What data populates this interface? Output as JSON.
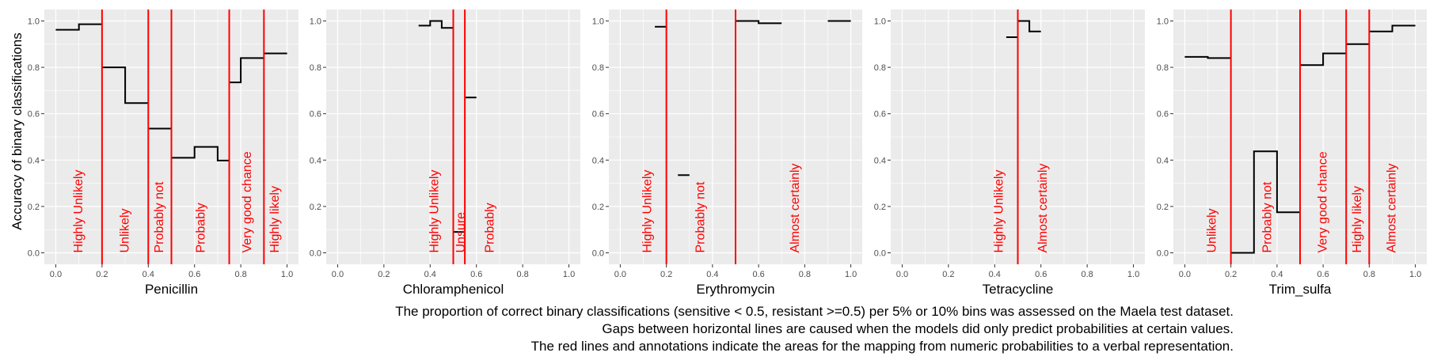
{
  "figure": {
    "ylabel": "Accuracy of binary classifications",
    "caption": [
      "The proportion of correct binary classifications (sensitive < 0.5, resistant >=0.5) per 5% or 10% bins was assessed on the Maela test dataset.",
      "Gaps between horizontal lines are caused when the models did only predict probabilities at certain values.",
      "The red lines and annotations indicate the areas for the mapping from numeric probabilities to a verbal representation."
    ],
    "colors": {
      "panel_bg": "#ebebeb",
      "grid": "#ffffff",
      "step_line": "#000000",
      "threshold": "#ff0000",
      "annotation": "#ff0000",
      "tick_label": "#4d4d4d"
    }
  },
  "chart_data": [
    {
      "type": "line",
      "step": true,
      "xlabel": "Penicillin",
      "ylabel": "Accuracy of binary classifications",
      "xlim": [
        0,
        1
      ],
      "ylim": [
        0,
        1
      ],
      "xticks": [
        "0.0",
        "0.2",
        "0.4",
        "0.6",
        "0.8",
        "1.0"
      ],
      "yticks": [
        "0.0",
        "0.2",
        "0.4",
        "0.6",
        "0.8",
        "1.0"
      ],
      "segments": [
        [
          [
            0.0,
            0.962
          ],
          [
            0.1,
            0.962
          ],
          [
            0.1,
            0.986
          ],
          [
            0.2,
            0.986
          ]
        ],
        [
          [
            0.2,
            0.8
          ],
          [
            0.3,
            0.8
          ],
          [
            0.3,
            0.646
          ],
          [
            0.4,
            0.646
          ]
        ],
        [
          [
            0.4,
            0.536
          ],
          [
            0.5,
            0.536
          ]
        ],
        [
          [
            0.5,
            0.41
          ],
          [
            0.6,
            0.41
          ],
          [
            0.6,
            0.457
          ],
          [
            0.7,
            0.457
          ],
          [
            0.7,
            0.398
          ],
          [
            0.75,
            0.398
          ]
        ],
        [
          [
            0.75,
            0.735
          ],
          [
            0.8,
            0.735
          ],
          [
            0.8,
            0.84
          ],
          [
            0.9,
            0.84
          ]
        ],
        [
          [
            0.9,
            0.86
          ],
          [
            1.0,
            0.86
          ]
        ]
      ],
      "thresholds": [
        0.2,
        0.4,
        0.5,
        0.75,
        0.9
      ],
      "annotations": [
        {
          "text": "Highly Unlikely",
          "x": 0.1
        },
        {
          "text": "Unlikely",
          "x": 0.3
        },
        {
          "text": "Probably not",
          "x": 0.45
        },
        {
          "text": "Probably",
          "x": 0.63
        },
        {
          "text": "Very good chance",
          "x": 0.83
        },
        {
          "text": "Highly likely",
          "x": 0.95
        }
      ]
    },
    {
      "type": "line",
      "step": true,
      "xlabel": "Chloramphenicol",
      "xlim": [
        0,
        1
      ],
      "ylim": [
        0,
        1
      ],
      "xticks": [
        "0.0",
        "0.2",
        "0.4",
        "0.6",
        "0.8",
        "1.0"
      ],
      "yticks": [
        "0.0",
        "0.2",
        "0.4",
        "0.6",
        "0.8",
        "1.0"
      ],
      "segments": [
        [
          [
            0.35,
            0.98
          ],
          [
            0.4,
            0.98
          ],
          [
            0.4,
            1.0
          ],
          [
            0.45,
            1.0
          ],
          [
            0.45,
            0.97
          ],
          [
            0.5,
            0.97
          ]
        ],
        [
          [
            0.5,
            0.09
          ],
          [
            0.55,
            0.09
          ]
        ],
        [
          [
            0.55,
            0.67
          ],
          [
            0.6,
            0.67
          ]
        ]
      ],
      "thresholds": [
        0.5,
        0.55
      ],
      "annotations": [
        {
          "text": "Highly Unlikely",
          "x": 0.42
        },
        {
          "text": "Unsure",
          "x": 0.535
        },
        {
          "text": "Probably",
          "x": 0.66
        }
      ]
    },
    {
      "type": "line",
      "step": true,
      "xlabel": "Erythromycin",
      "xlim": [
        0,
        1
      ],
      "ylim": [
        0,
        1
      ],
      "xticks": [
        "0.0",
        "0.2",
        "0.4",
        "0.6",
        "0.8",
        "1.0"
      ],
      "yticks": [
        "0.0",
        "0.2",
        "0.4",
        "0.6",
        "0.8",
        "1.0"
      ],
      "segments": [
        [
          [
            0.15,
            0.975
          ],
          [
            0.2,
            0.975
          ]
        ],
        [
          [
            0.25,
            0.335
          ],
          [
            0.3,
            0.335
          ]
        ],
        [
          [
            0.5,
            1.0
          ],
          [
            0.6,
            1.0
          ],
          [
            0.6,
            0.99
          ],
          [
            0.7,
            0.99
          ]
        ],
        [
          [
            0.9,
            1.0
          ],
          [
            1.0,
            1.0
          ]
        ]
      ],
      "thresholds": [
        0.2,
        0.5
      ],
      "annotations": [
        {
          "text": "Highly Unlikely",
          "x": 0.12
        },
        {
          "text": "Probably not",
          "x": 0.35
        },
        {
          "text": "Almost certainly",
          "x": 0.76
        }
      ]
    },
    {
      "type": "line",
      "step": true,
      "xlabel": "Tetracycline",
      "xlim": [
        0,
        1
      ],
      "ylim": [
        0,
        1
      ],
      "xticks": [
        "0.0",
        "0.2",
        "0.4",
        "0.6",
        "0.8",
        "1.0"
      ],
      "yticks": [
        "0.0",
        "0.2",
        "0.4",
        "0.6",
        "0.8",
        "1.0"
      ],
      "segments": [
        [
          [
            0.45,
            0.93
          ],
          [
            0.5,
            0.93
          ]
        ],
        [
          [
            0.5,
            1.0
          ],
          [
            0.55,
            1.0
          ],
          [
            0.55,
            0.955
          ],
          [
            0.6,
            0.955
          ]
        ]
      ],
      "thresholds": [
        0.5
      ],
      "annotations": [
        {
          "text": "Highly Unlikely",
          "x": 0.42
        },
        {
          "text": "Almost certainly",
          "x": 0.61
        }
      ]
    },
    {
      "type": "line",
      "step": true,
      "xlabel": "Trim_sulfa",
      "xlim": [
        0,
        1
      ],
      "ylim": [
        0,
        1
      ],
      "xticks": [
        "0.0",
        "0.2",
        "0.4",
        "0.6",
        "0.8",
        "1.0"
      ],
      "yticks": [
        "0.0",
        "0.2",
        "0.4",
        "0.6",
        "0.8",
        "1.0"
      ],
      "segments": [
        [
          [
            0.0,
            0.845
          ],
          [
            0.1,
            0.845
          ],
          [
            0.1,
            0.84
          ],
          [
            0.2,
            0.84
          ]
        ],
        [
          [
            0.2,
            0.0
          ],
          [
            0.3,
            0.0
          ],
          [
            0.3,
            0.438
          ],
          [
            0.4,
            0.438
          ],
          [
            0.4,
            0.175
          ],
          [
            0.5,
            0.175
          ]
        ],
        [
          [
            0.5,
            0.81
          ],
          [
            0.6,
            0.81
          ],
          [
            0.6,
            0.86
          ],
          [
            0.7,
            0.86
          ]
        ],
        [
          [
            0.7,
            0.9
          ],
          [
            0.8,
            0.9
          ]
        ],
        [
          [
            0.8,
            0.955
          ],
          [
            0.9,
            0.955
          ],
          [
            0.9,
            0.98
          ],
          [
            1.0,
            0.98
          ]
        ]
      ],
      "thresholds": [
        0.2,
        0.5,
        0.7,
        0.8
      ],
      "annotations": [
        {
          "text": "Unlikely",
          "x": 0.12
        },
        {
          "text": "Probably not",
          "x": 0.36
        },
        {
          "text": "Very good chance",
          "x": 0.6
        },
        {
          "text": "Highly likely",
          "x": 0.75
        },
        {
          "text": "Almost certainly",
          "x": 0.9
        }
      ]
    }
  ]
}
